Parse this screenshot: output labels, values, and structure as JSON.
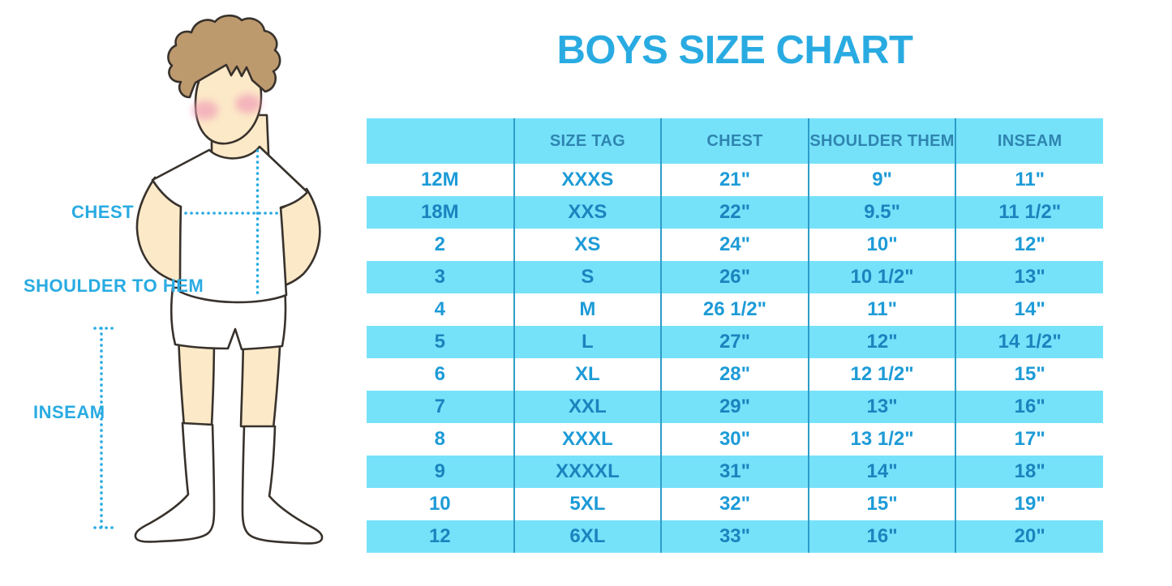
{
  "title": "BOYS SIZE CHART",
  "figure": {
    "labels": {
      "chest": "CHEST",
      "shoulder_to_hem": "SHOULDER TO HEM",
      "inseam": "INSEAM"
    }
  },
  "colors": {
    "accent_blue": "#29ABE2",
    "row_cyan": "#76E2FA",
    "header_text": "#2F85B0",
    "cell_text": "#1D9BD7",
    "cell_text_alt": "#1B84BE",
    "divider": "#2D9DC9",
    "outline": "#38322C",
    "skin": "#FCE9C8",
    "hair": "#BD9A6E",
    "cheek": "#F2A4B8"
  },
  "chart_data": {
    "type": "table",
    "title": "BOYS SIZE CHART",
    "columns": [
      "",
      "SIZE TAG",
      "CHEST",
      "SHOULDER THEM",
      "INSEAM"
    ],
    "rows": [
      [
        "12M",
        "XXXS",
        "21\"",
        "9\"",
        "11\""
      ],
      [
        "18M",
        "XXS",
        "22\"",
        "9.5\"",
        "11 1/2\""
      ],
      [
        "2",
        "XS",
        "24\"",
        "10\"",
        "12\""
      ],
      [
        "3",
        "S",
        "26\"",
        "10 1/2\"",
        "13\""
      ],
      [
        "4",
        "M",
        "26 1/2\"",
        "11\"",
        "14\""
      ],
      [
        "5",
        "L",
        "27\"",
        "12\"",
        "14 1/2\""
      ],
      [
        "6",
        "XL",
        "28\"",
        "12 1/2\"",
        "15\""
      ],
      [
        "7",
        "XXL",
        "29\"",
        "13\"",
        "16\""
      ],
      [
        "8",
        "XXXL",
        "30\"",
        "13 1/2\"",
        "17\""
      ],
      [
        "9",
        "XXXXL",
        "31\"",
        "14\"",
        "18\""
      ],
      [
        "10",
        "5XL",
        "32\"",
        "15\"",
        "19\""
      ],
      [
        "12",
        "6XL",
        "33\"",
        "16\"",
        "20\""
      ]
    ]
  }
}
